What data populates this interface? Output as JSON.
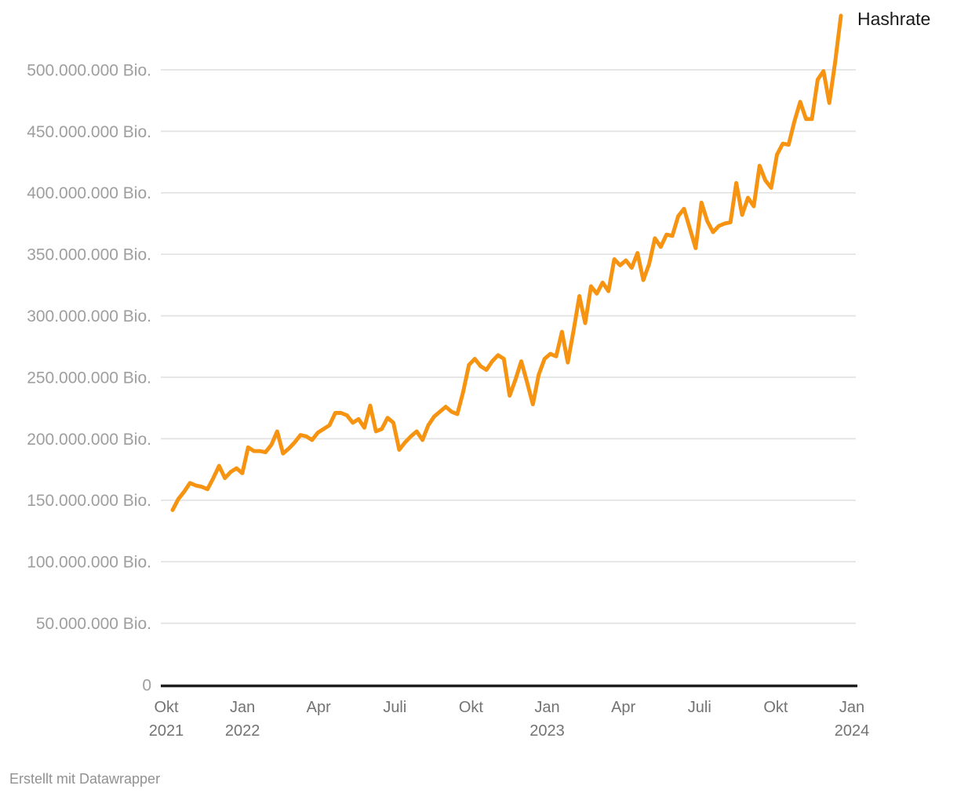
{
  "footer": {
    "credit": "Erstellt mit Datawrapper"
  },
  "colors": {
    "line": "#F69311",
    "grid": "#e2e2e2",
    "axis": "#1f1f1f",
    "y_tick_text": "#9e9e9e",
    "x_tick_text": "#737373",
    "series_label_text": "#1a1a1a",
    "credit_text": "#919191",
    "background": "#ffffff"
  },
  "chart_data": {
    "type": "line",
    "title": "",
    "grid": true,
    "legend_position": "label at end of line, top-right",
    "series": [
      {
        "name": "Hashrate",
        "color": "#F69311",
        "unit": "Bio.",
        "values_unit_note": "values below are in Millionen Bio. (1 unit = 1.000.000 Bio.)",
        "frequency": "weekly points, Okt 2021 bis Dez 2023 (estimated from pixels)",
        "values": [
          142,
          151,
          157,
          164,
          162,
          161,
          159,
          168,
          178,
          168,
          173,
          176,
          172,
          193,
          190,
          190,
          189,
          195,
          206,
          188,
          192,
          197,
          203,
          202,
          199,
          205,
          208,
          211,
          221,
          221,
          219,
          213,
          216,
          209,
          227,
          206,
          208,
          217,
          213,
          191,
          197,
          202,
          206,
          199,
          211,
          218,
          222,
          226,
          222,
          220,
          238,
          260,
          265,
          259,
          256,
          263,
          268,
          265,
          235,
          248,
          263,
          246,
          228,
          252,
          265,
          269,
          267,
          287,
          262,
          288,
          316,
          294,
          324,
          318,
          327,
          320,
          346,
          341,
          345,
          339,
          351,
          329,
          342,
          363,
          356,
          366,
          365,
          381,
          387,
          371,
          355,
          392,
          377,
          368,
          373,
          375,
          376,
          408,
          382,
          396,
          389,
          422,
          410,
          404,
          431,
          440,
          439,
          458,
          474,
          460,
          460,
          492,
          499,
          473,
          506,
          544
        ]
      }
    ],
    "x_axis": {
      "range_note": "Okt 2021 bis Jan 2024, quarterly ticks",
      "ticks": [
        {
          "month": "Okt",
          "year": "2021"
        },
        {
          "month": "Jan",
          "year": "2022"
        },
        {
          "month": "Apr"
        },
        {
          "month": "Juli"
        },
        {
          "month": "Okt"
        },
        {
          "month": "Jan",
          "year": "2023"
        },
        {
          "month": "Apr"
        },
        {
          "month": "Juli"
        },
        {
          "month": "Okt"
        },
        {
          "month": "Jan",
          "year": "2024"
        }
      ]
    },
    "y_axis": {
      "min": 0,
      "tick_interval_mio_bio": 50,
      "zero_label": "0",
      "tick_labels_top_to_bottom": [
        "500.000.000 Bio.",
        "450.000.000 Bio.",
        "400.000.000 Bio.",
        "350.000.000 Bio.",
        "300.000.000 Bio.",
        "250.000.000 Bio.",
        "200.000.000 Bio.",
        "150.000.000 Bio.",
        "100.000.000 Bio.",
        "50.000.000 Bio."
      ]
    }
  }
}
